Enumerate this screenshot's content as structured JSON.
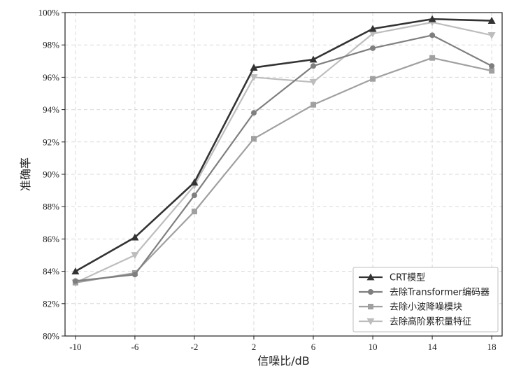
{
  "chart_data": {
    "type": "line",
    "xlabel": "信噪比/dB",
    "ylabel": "准确率",
    "x": [
      -10,
      -6,
      -2,
      2,
      6,
      10,
      14,
      18
    ],
    "x_tick_labels": [
      "-10",
      "-6",
      "-2",
      "2",
      "6",
      "10",
      "14",
      "18"
    ],
    "xlim": [
      -10.7,
      18.7
    ],
    "ylim": [
      80,
      100
    ],
    "y_ticks": [
      80,
      82,
      84,
      86,
      88,
      90,
      92,
      94,
      96,
      98,
      100
    ],
    "y_tick_labels": [
      "80%",
      "82%",
      "84%",
      "86%",
      "88%",
      "90%",
      "92%",
      "94%",
      "96%",
      "98%",
      "100%"
    ],
    "grid": true,
    "legend_position": "bottom-right",
    "series": [
      {
        "name": "CRT模型",
        "marker": "triangle-up",
        "color": "#333333",
        "values": [
          84.0,
          86.1,
          89.5,
          96.6,
          97.1,
          99.0,
          99.6,
          99.5
        ]
      },
      {
        "name": "去除Transformer编码器",
        "marker": "circle",
        "color": "#7f7f7f",
        "values": [
          83.4,
          83.8,
          88.7,
          93.8,
          96.7,
          97.8,
          98.6,
          96.7
        ]
      },
      {
        "name": "去除小波降噪模块",
        "marker": "square",
        "color": "#a0a0a0",
        "values": [
          83.3,
          83.9,
          87.7,
          92.2,
          94.3,
          95.9,
          97.2,
          96.4
        ]
      },
      {
        "name": "去除高阶累积量特征",
        "marker": "triangle-down",
        "color": "#bdbdbd",
        "values": [
          83.3,
          85.0,
          89.3,
          96.0,
          95.7,
          98.7,
          99.4,
          98.6
        ]
      }
    ]
  }
}
